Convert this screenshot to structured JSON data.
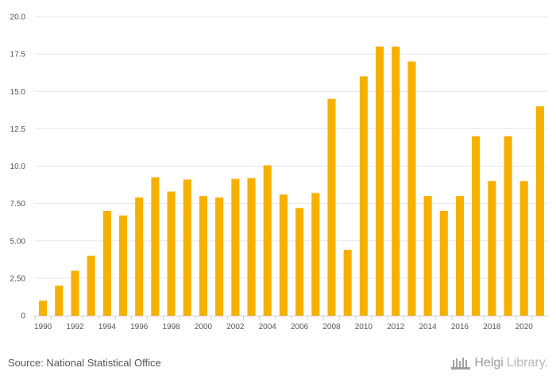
{
  "chart_data": {
    "type": "bar",
    "title": "",
    "xlabel": "",
    "ylabel": "",
    "ylim": [
      0,
      20
    ],
    "yticks": [
      0,
      2.5,
      5,
      7.5,
      10,
      12.5,
      15,
      17.5,
      20
    ],
    "ytick_labels": [
      "0",
      "2.50",
      "5.00",
      "7.50",
      "10.0",
      "12.5",
      "15.0",
      "17.5",
      "20.0"
    ],
    "grid": true,
    "bar_color": "#f5b000",
    "categories": [
      "1990",
      "1991",
      "1992",
      "1993",
      "1994",
      "1995",
      "1996",
      "1997",
      "1998",
      "1999",
      "2000",
      "2001",
      "2002",
      "2003",
      "2004",
      "2005",
      "2006",
      "2007",
      "2008",
      "2009",
      "2010",
      "2011",
      "2012",
      "2013",
      "2014",
      "2015",
      "2016",
      "2017",
      "2018",
      "2019",
      "2020",
      "2021"
    ],
    "xtick_labels": [
      "1990",
      "1992",
      "1994",
      "1996",
      "1998",
      "2000",
      "2002",
      "2004",
      "2006",
      "2008",
      "2010",
      "2012",
      "2014",
      "2016",
      "2018",
      "2020"
    ],
    "values": [
      1.0,
      2.0,
      3.0,
      4.0,
      7.0,
      6.7,
      7.9,
      9.25,
      8.3,
      9.1,
      8.0,
      7.9,
      9.15,
      9.2,
      10.05,
      8.1,
      7.2,
      8.2,
      14.5,
      4.4,
      16.0,
      18.0,
      18.0,
      17.0,
      8.0,
      7.0,
      8.0,
      12.0,
      9.0,
      12.0,
      9.0,
      14.0
    ]
  },
  "footer": {
    "source": "Source: National Statistical Office",
    "brand_main": "Helgi",
    "brand_sub": "Library."
  }
}
